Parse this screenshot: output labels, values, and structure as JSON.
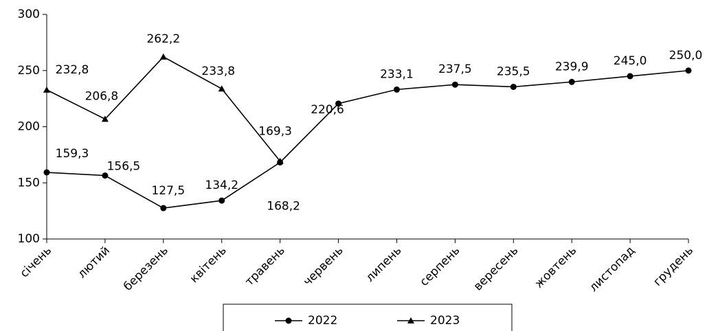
{
  "chart_data": {
    "type": "line",
    "categories": [
      "січень",
      "лютий",
      "березень",
      "квітень",
      "травень",
      "червень",
      "липень",
      "серпень",
      "вересень",
      "жовтень",
      "листопад",
      "грудень"
    ],
    "series": [
      {
        "name": "2022",
        "color": "#000000",
        "marker": "circle",
        "values": [
          159.3,
          156.5,
          127.5,
          134.2,
          168.2,
          220.6,
          233.1,
          237.5,
          235.5,
          239.9,
          245.0,
          250.0
        ],
        "value_labels": [
          "159,3",
          "156,5",
          "127,5",
          "134,2",
          "168,2",
          "220,6",
          "233,1",
          "237,5",
          "235,5",
          "239,9",
          "245,0",
          "250,0"
        ]
      },
      {
        "name": "2023",
        "color": "#000000",
        "marker": "triangle",
        "values": [
          232.8,
          206.8,
          262.2,
          233.8,
          169.3,
          null,
          null,
          null,
          null,
          null,
          null,
          null
        ],
        "value_labels": [
          "232,8",
          "206,8",
          "262,2",
          "233,8",
          "169,3",
          null,
          null,
          null,
          null,
          null,
          null,
          null
        ]
      }
    ],
    "ylim": [
      100,
      300
    ],
    "yticks": [
      100,
      150,
      200,
      250,
      300
    ],
    "grid": false,
    "legend": "bottom"
  }
}
